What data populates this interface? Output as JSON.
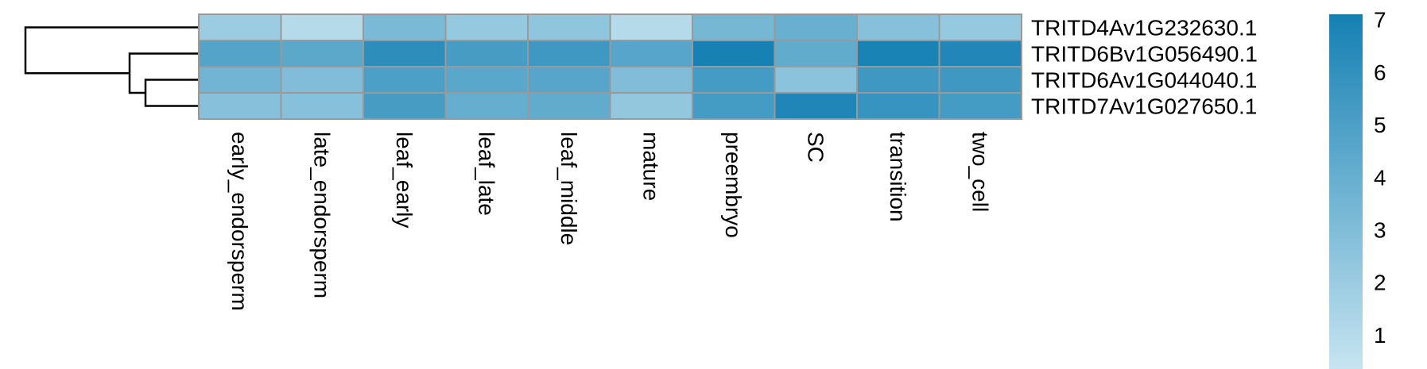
{
  "chart_data": {
    "type": "heatmap",
    "rows": [
      "TRITD4Av1G232630.1",
      "TRITD6Bv1G056490.1",
      "TRITD6Av1G044040.1",
      "TRITD7Av1G027650.1"
    ],
    "columns": [
      "early_endorsperm",
      "late_endorsperm",
      "leaf_early",
      "leaf_late",
      "leaf_middle",
      "mature",
      "preembryo",
      "SC",
      "transition",
      "two_cell"
    ],
    "values": [
      [
        2.0,
        1.0,
        3.2,
        2.2,
        2.4,
        1.0,
        3.4,
        3.9,
        2.8,
        2.2
      ],
      [
        4.7,
        4.4,
        6.2,
        5.2,
        5.5,
        4.6,
        7.0,
        4.2,
        6.9,
        6.6
      ],
      [
        3.6,
        3.0,
        5.0,
        4.5,
        4.6,
        3.0,
        5.3,
        2.6,
        5.5,
        5.5
      ],
      [
        2.8,
        2.8,
        5.2,
        4.0,
        4.2,
        2.3,
        5.3,
        6.7,
        5.8,
        5.3
      ]
    ],
    "colorbar": {
      "ticks": [
        1,
        2,
        3,
        4,
        5,
        6,
        7
      ],
      "min": 0.35,
      "max": 7.1,
      "low_color": "#c6e4f0",
      "high_color": "#1580b3"
    },
    "dendrogram": {
      "side": "left",
      "merges": [
        [
          2,
          3
        ],
        [
          1,
          "2-3"
        ],
        [
          0,
          "1-2-3"
        ]
      ]
    },
    "cell_border_color": "#999999"
  }
}
